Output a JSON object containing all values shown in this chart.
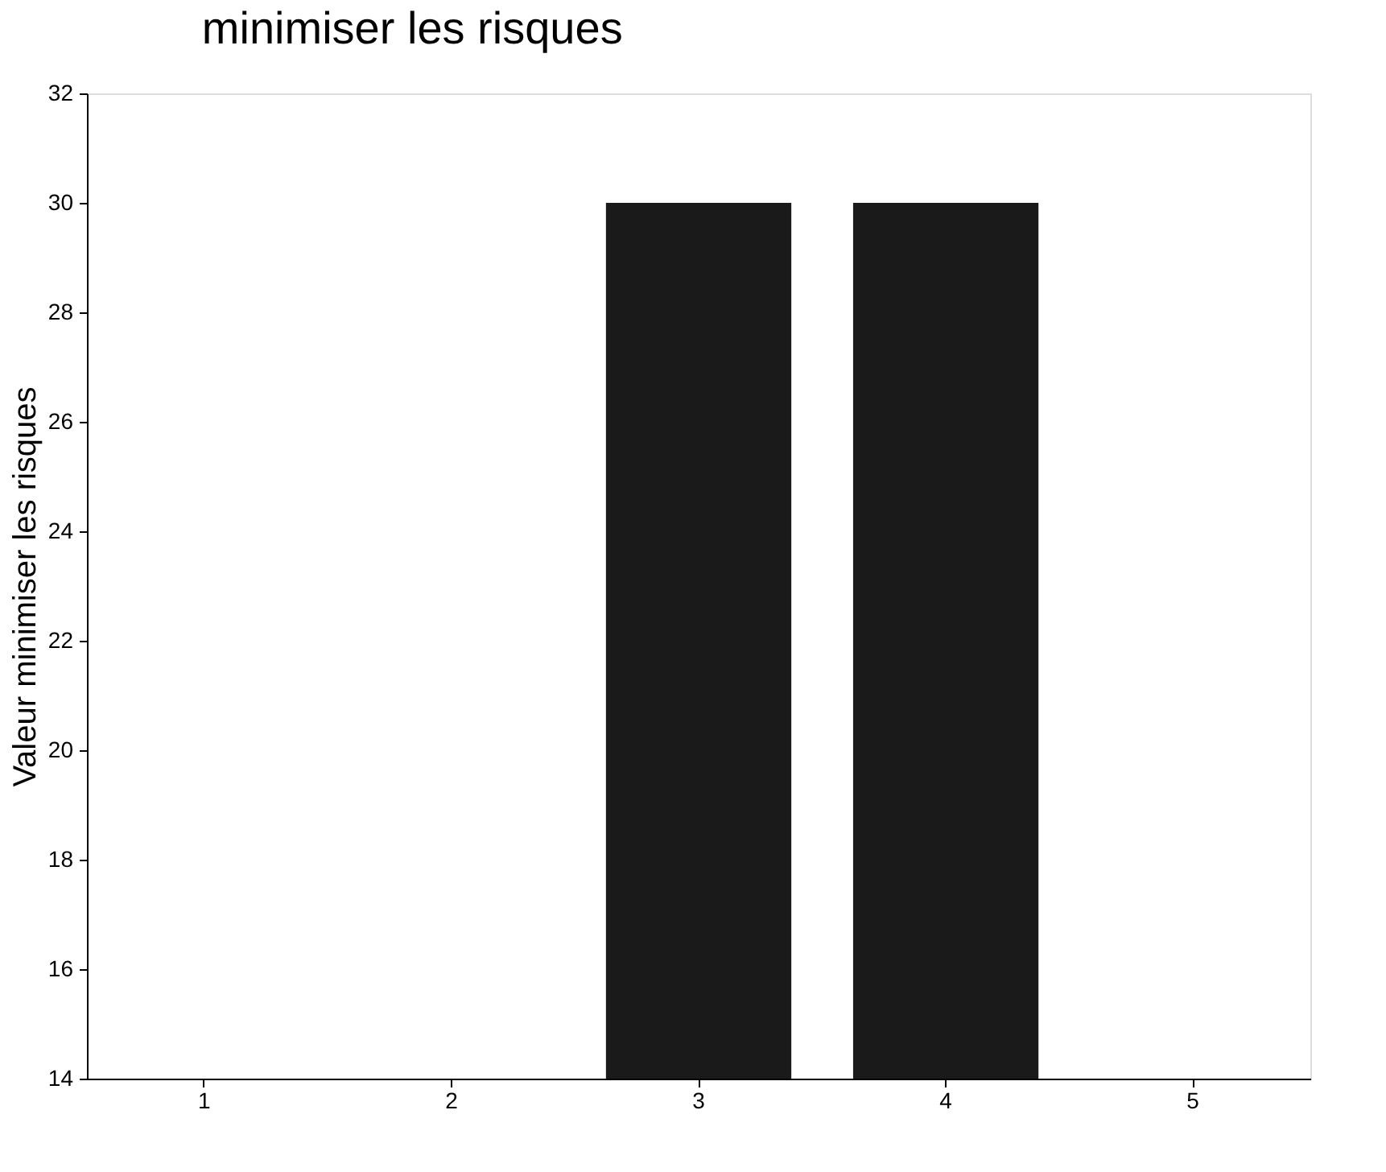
{
  "chart_data": {
    "type": "bar",
    "title": "minimiser les risques",
    "ylabel": "Valeur minimiser les risques",
    "categories": [
      "1",
      "2",
      "3",
      "4",
      "5"
    ],
    "values": [
      null,
      null,
      30,
      30,
      null
    ],
    "color": "#1a1a1a",
    "ylim": [
      14,
      32
    ],
    "yticks": [
      14,
      16,
      18,
      20,
      22,
      24,
      26,
      28,
      30,
      32
    ],
    "grid": false
  }
}
